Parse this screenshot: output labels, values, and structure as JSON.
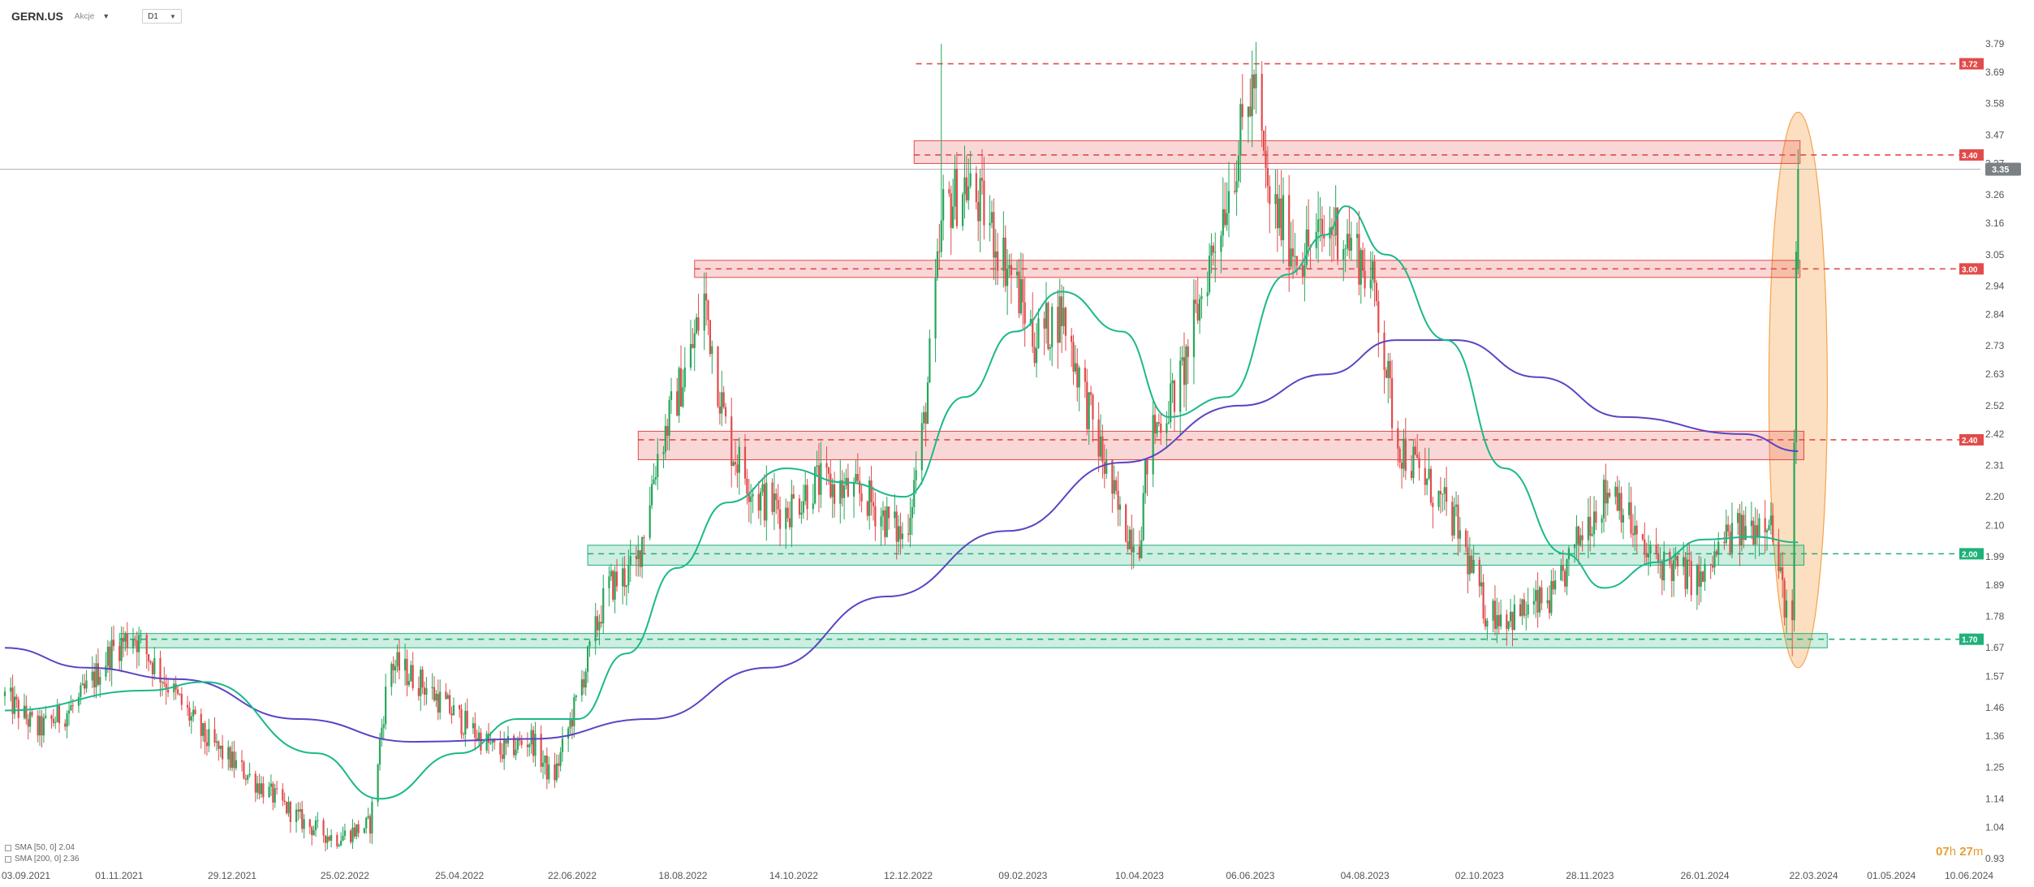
{
  "header": {
    "symbol": "GERN.US",
    "symbol_sub": "Akcje",
    "timeframe": "D1"
  },
  "legend": [
    {
      "label": "SMA [50, 0] 2.04"
    },
    {
      "label": "SMA [200, 0] 2.36"
    }
  ],
  "countdown": {
    "hours": "07",
    "h_unit": "h",
    "minutes": "27",
    "m_unit": "m"
  },
  "colors": {
    "up": "#26a65b",
    "down": "#e24b4b",
    "sma50": "#1bb88a",
    "sma200": "#5b44c4",
    "resistance": "#e24b4b",
    "support": "#1fb17a",
    "highlight": "#f6a24a",
    "current_price": "#7b8084"
  },
  "chart_data": {
    "type": "candlestick",
    "y_ticks": [
      "3.79",
      "3.69",
      "3.58",
      "3.47",
      "3.37",
      "3.26",
      "3.16",
      "3.05",
      "2.94",
      "2.84",
      "2.73",
      "2.63",
      "2.52",
      "2.42",
      "2.31",
      "2.20",
      "2.10",
      "1.99",
      "1.89",
      "1.78",
      "1.67",
      "1.57",
      "1.46",
      "1.36",
      "1.25",
      "1.14",
      "1.04",
      "0.93"
    ],
    "ylim": [
      0.93,
      3.79
    ],
    "x_ticks": [
      {
        "label": "03.09.2021",
        "date": "2021-09-03"
      },
      {
        "label": "01.11.2021",
        "date": "2021-11-01"
      },
      {
        "label": "29.12.2021",
        "date": "2021-12-29"
      },
      {
        "label": "25.02.2022",
        "date": "2022-02-25"
      },
      {
        "label": "25.04.2022",
        "date": "2022-04-25"
      },
      {
        "label": "22.06.2022",
        "date": "2022-06-22"
      },
      {
        "label": "18.08.2022",
        "date": "2022-08-18"
      },
      {
        "label": "14.10.2022",
        "date": "2022-10-14"
      },
      {
        "label": "12.12.2022",
        "date": "2022-12-12"
      },
      {
        "label": "09.02.2023",
        "date": "2023-02-09"
      },
      {
        "label": "10.04.2023",
        "date": "2023-04-10"
      },
      {
        "label": "06.06.2023",
        "date": "2023-06-06"
      },
      {
        "label": "04.08.2023",
        "date": "2023-08-04"
      },
      {
        "label": "02.10.2023",
        "date": "2023-10-02"
      },
      {
        "label": "28.11.2023",
        "date": "2023-11-28"
      },
      {
        "label": "26.01.2024",
        "date": "2024-01-26"
      },
      {
        "label": "22.03.2024",
        "date": "2024-03-22"
      },
      {
        "label": "01.05.2024",
        "date": "2024-05-01"
      },
      {
        "label": "10.06.2024",
        "date": "2024-06-10"
      }
    ],
    "last_date": "2024-03-14",
    "current_price": {
      "value": 3.35,
      "label": "3.35"
    },
    "price_path": [
      [
        "2021-09-03",
        1.5
      ],
      [
        "2021-09-20",
        1.38
      ],
      [
        "2021-10-10",
        1.47
      ],
      [
        "2021-10-28",
        1.66
      ],
      [
        "2021-11-08",
        1.72
      ],
      [
        "2021-11-25",
        1.55
      ],
      [
        "2021-12-15",
        1.35
      ],
      [
        "2022-01-10",
        1.2
      ],
      [
        "2022-02-05",
        1.05
      ],
      [
        "2022-02-20",
        1.0
      ],
      [
        "2022-03-10",
        1.05
      ],
      [
        "2022-03-20",
        1.62
      ],
      [
        "2022-04-05",
        1.55
      ],
      [
        "2022-04-25",
        1.42
      ],
      [
        "2022-05-15",
        1.3
      ],
      [
        "2022-06-01",
        1.35
      ],
      [
        "2022-06-12",
        1.2
      ],
      [
        "2022-06-25",
        1.5
      ],
      [
        "2022-07-10",
        1.88
      ],
      [
        "2022-07-25",
        1.95
      ],
      [
        "2022-08-05",
        2.35
      ],
      [
        "2022-08-22",
        2.7
      ],
      [
        "2022-08-29",
        2.9
      ],
      [
        "2022-09-10",
        2.4
      ],
      [
        "2022-09-25",
        2.2
      ],
      [
        "2022-10-10",
        2.15
      ],
      [
        "2022-10-25",
        2.25
      ],
      [
        "2022-11-20",
        2.2
      ],
      [
        "2022-12-10",
        2.05
      ],
      [
        "2022-12-20",
        2.45
      ],
      [
        "2022-12-30",
        3.2
      ],
      [
        "2023-01-10",
        3.3
      ],
      [
        "2023-01-20",
        3.2
      ],
      [
        "2023-02-05",
        2.95
      ],
      [
        "2023-02-15",
        2.75
      ],
      [
        "2023-03-01",
        2.85
      ],
      [
        "2023-03-15",
        2.5
      ],
      [
        "2023-04-01",
        2.1
      ],
      [
        "2023-04-10",
        2.05
      ],
      [
        "2023-04-15",
        2.4
      ],
      [
        "2023-05-01",
        2.6
      ],
      [
        "2023-05-15",
        3.0
      ],
      [
        "2023-05-30",
        3.4
      ],
      [
        "2023-06-08",
        3.66
      ],
      [
        "2023-06-15",
        3.25
      ],
      [
        "2023-07-01",
        3.05
      ],
      [
        "2023-07-20",
        3.15
      ],
      [
        "2023-08-01",
        3.05
      ],
      [
        "2023-08-10",
        2.9
      ],
      [
        "2023-08-20",
        2.4
      ],
      [
        "2023-09-05",
        2.25
      ],
      [
        "2023-09-20",
        2.1
      ],
      [
        "2023-10-05",
        1.8
      ],
      [
        "2023-10-20",
        1.78
      ],
      [
        "2023-11-10",
        1.85
      ],
      [
        "2023-11-25",
        2.1
      ],
      [
        "2023-12-10",
        2.25
      ],
      [
        "2023-12-25",
        2.0
      ],
      [
        "2024-01-10",
        1.95
      ],
      [
        "2024-01-25",
        1.9
      ],
      [
        "2024-02-05",
        2.05
      ],
      [
        "2024-02-20",
        2.1
      ],
      [
        "2024-02-28",
        2.15
      ],
      [
        "2024-03-05",
        1.9
      ],
      [
        "2024-03-11",
        1.72
      ],
      [
        "2024-03-13",
        3.0
      ],
      [
        "2024-03-14",
        3.35
      ]
    ],
    "sma50": [
      [
        "2021-09-03",
        1.45
      ],
      [
        "2021-11-15",
        1.52
      ],
      [
        "2021-12-15",
        1.55
      ],
      [
        "2022-02-10",
        1.3
      ],
      [
        "2022-03-15",
        1.14
      ],
      [
        "2022-04-25",
        1.3
      ],
      [
        "2022-05-25",
        1.42
      ],
      [
        "2022-06-25",
        1.42
      ],
      [
        "2022-07-20",
        1.65
      ],
      [
        "2022-08-15",
        1.95
      ],
      [
        "2022-09-10",
        2.18
      ],
      [
        "2022-10-10",
        2.3
      ],
      [
        "2022-11-10",
        2.25
      ],
      [
        "2022-12-10",
        2.2
      ],
      [
        "2023-01-10",
        2.55
      ],
      [
        "2023-02-05",
        2.78
      ],
      [
        "2023-03-01",
        2.92
      ],
      [
        "2023-04-01",
        2.78
      ],
      [
        "2023-04-25",
        2.48
      ],
      [
        "2023-05-25",
        2.55
      ],
      [
        "2023-06-25",
        2.98
      ],
      [
        "2023-07-15",
        3.12
      ],
      [
        "2023-07-25",
        3.22
      ],
      [
        "2023-08-15",
        3.05
      ],
      [
        "2023-09-15",
        2.75
      ],
      [
        "2023-10-15",
        2.3
      ],
      [
        "2023-11-15",
        2.0
      ],
      [
        "2023-12-05",
        1.88
      ],
      [
        "2024-01-01",
        1.97
      ],
      [
        "2024-01-25",
        2.05
      ],
      [
        "2024-02-20",
        2.06
      ],
      [
        "2024-03-14",
        2.04
      ]
    ],
    "sma200": [
      [
        "2021-09-03",
        1.67
      ],
      [
        "2021-10-15",
        1.6
      ],
      [
        "2021-12-01",
        1.56
      ],
      [
        "2022-02-01",
        1.42
      ],
      [
        "2022-04-01",
        1.34
      ],
      [
        "2022-06-01",
        1.35
      ],
      [
        "2022-08-01",
        1.42
      ],
      [
        "2022-10-01",
        1.6
      ],
      [
        "2022-12-01",
        1.85
      ],
      [
        "2023-02-01",
        2.08
      ],
      [
        "2023-04-01",
        2.32
      ],
      [
        "2023-06-01",
        2.52
      ],
      [
        "2023-07-15",
        2.63
      ],
      [
        "2023-08-20",
        2.75
      ],
      [
        "2023-09-20",
        2.75
      ],
      [
        "2023-11-01",
        2.62
      ],
      [
        "2023-12-15",
        2.48
      ],
      [
        "2024-02-15",
        2.42
      ],
      [
        "2024-03-14",
        2.36
      ]
    ],
    "resistance_zones": [
      {
        "low": 3.37,
        "high": 3.45,
        "line": 3.4,
        "label": "3.40",
        "start": "2022-12-15",
        "end": "2024-03-15"
      },
      {
        "low": 2.97,
        "high": 3.03,
        "line": 3.0,
        "label": "3.00",
        "start": "2022-08-24",
        "end": "2024-03-15"
      },
      {
        "low": 2.33,
        "high": 2.43,
        "line": 2.4,
        "label": "2.40",
        "start": "2022-07-26",
        "end": "2024-03-17"
      }
    ],
    "support_zones": [
      {
        "low": 1.96,
        "high": 2.03,
        "line": 2.0,
        "label": "2.00",
        "start": "2022-06-30",
        "end": "2024-03-17"
      },
      {
        "low": 1.67,
        "high": 1.72,
        "line": 1.7,
        "label": "1.70",
        "start": "2021-11-01",
        "end": "2024-03-29"
      }
    ],
    "dashed_levels": [
      {
        "value": 3.72,
        "label": "3.72",
        "start": "2022-12-16",
        "color": "resistance"
      }
    ],
    "highlight_ellipse": {
      "center_date": "2024-03-14",
      "top": 3.55,
      "bottom": 1.6
    }
  }
}
